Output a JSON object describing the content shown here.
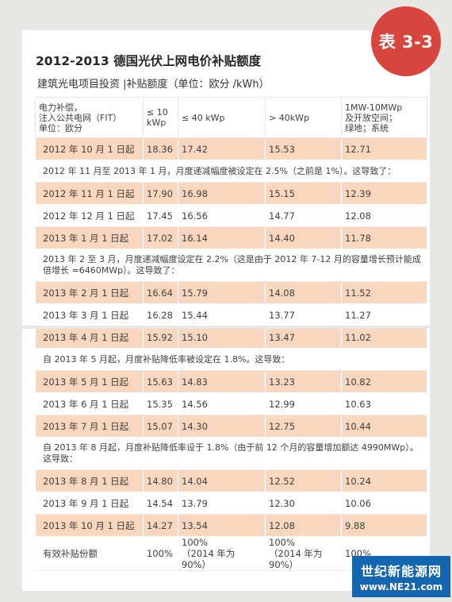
{
  "badge": "表 3-3",
  "title": "2012-2013 德国光伏上网电价补贴额度",
  "subtitle": "建筑光电项目投资  |补贴额度（单位：欧分 /kWh）",
  "headers": [
    "电力补偿，\n注入公共电网（FIT）\n单位：欧分",
    "≤ 10 kWp",
    "≤ 40 kWp",
    "> 40kWp",
    "1MW-10MWp\n及开放空间；\n绿地；系统"
  ],
  "rows": [
    {
      "kind": "data",
      "style": "o",
      "cells": [
        "2012 年 10 月 1 日起",
        "18.36",
        "17.42",
        "15.53",
        "12.71"
      ]
    },
    {
      "kind": "note",
      "text": "2012 年 11 月至 2013 年 1 月，月度递减幅度被设定在 2.5%（之前是 1%）。这导致了："
    },
    {
      "kind": "data",
      "style": "o",
      "cells": [
        "2012 年 11 月 1 日起",
        "17.90",
        "16.98",
        "15.15",
        "12.39"
      ]
    },
    {
      "kind": "data",
      "style": "w",
      "cells": [
        "2012 年 12 月 1 日起",
        "17.45",
        "16.56",
        "14.77",
        "12.08"
      ]
    },
    {
      "kind": "data",
      "style": "o",
      "cells": [
        "2013 年 1 月 1 日起",
        "17.02",
        "16.14",
        "14.40",
        "11.78"
      ]
    },
    {
      "kind": "note",
      "tall": true,
      "text": "2013 年 2 至 3 月，月度递减幅度设定在 2.2%（这是由于 2012 年 7-12 月的容量增长预计能成倍增长 =6460MWp）。这导致了："
    },
    {
      "kind": "data",
      "style": "o",
      "cells": [
        "2013 年 2 月 1 日起",
        "16.64",
        "15.79",
        "14.08",
        "11.52"
      ]
    },
    {
      "kind": "data",
      "style": "w",
      "cells": [
        "2013 年 3 月 1 日起",
        "16.28",
        "15.44",
        "13.77",
        "11.27"
      ]
    },
    {
      "kind": "data",
      "style": "o",
      "cells": [
        "2013 年 4 月 1 日起",
        "15.92",
        "15.10",
        "13.47",
        "11.02"
      ]
    },
    {
      "kind": "note",
      "text": "自 2013 年 5 月起，月度补贴降低率被设定在 1.8%。这导致："
    },
    {
      "kind": "data",
      "style": "o",
      "cells": [
        "2013 年 5 月 1 日起",
        "15.63",
        "14.83",
        "13.23",
        "10.82"
      ]
    },
    {
      "kind": "data",
      "style": "w",
      "cells": [
        "2013 年 6 月 1 日起",
        "15.35",
        "14.56",
        "12.99",
        "10.63"
      ]
    },
    {
      "kind": "data",
      "style": "o",
      "cells": [
        "2013 年 7 月 1 日起",
        "15.07",
        "14.30",
        "12.75",
        "10.44"
      ]
    },
    {
      "kind": "note",
      "tall": true,
      "text": "自 2013 年 8 月起，月度补贴降低率设于 1.8%（由于前 12 个月的容量增加额达 4990MWp）。这导致："
    },
    {
      "kind": "data",
      "style": "o",
      "cells": [
        "2013 年 8 月 1 日起",
        "14.80",
        "14.04",
        "12.52",
        "10.24"
      ]
    },
    {
      "kind": "data",
      "style": "w",
      "cells": [
        "2013 年 9 月 1 日起",
        "14.54",
        "13.79",
        "12.30",
        "10.06"
      ]
    },
    {
      "kind": "data",
      "style": "o",
      "cells": [
        "2013 年 10 月 1 日起",
        "14.27",
        "13.54",
        "12.08",
        "9.88"
      ]
    },
    {
      "kind": "data",
      "style": "w",
      "last": true,
      "cells": [
        "有效补贴份额",
        "100%",
        "100%\n（2014 年为 90%）",
        "100%\n（2014 年为 90%）",
        "100%"
      ]
    }
  ],
  "logo": {
    "line1": "世纪新能源网",
    "line2": "www.NE21.com"
  }
}
